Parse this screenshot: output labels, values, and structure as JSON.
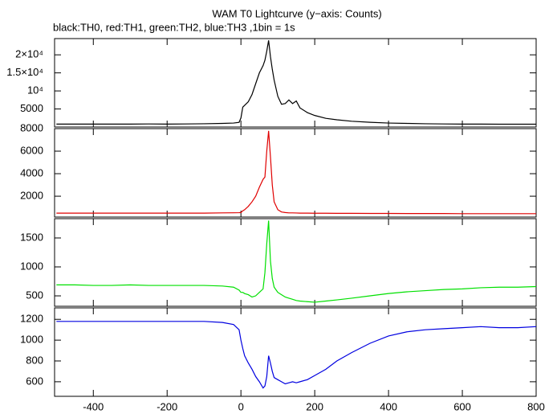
{
  "chart_data": [
    {
      "type": "line",
      "title": "WAM T0 Lightcurve (y−axis: Counts)",
      "subtitle": "black:TH0, red:TH1, green:TH2, blue:TH3 ,1bin = 1s",
      "x": [
        -500,
        -450,
        -400,
        -350,
        -300,
        -250,
        -200,
        -150,
        -100,
        -50,
        -20,
        -5,
        0,
        5,
        10,
        20,
        30,
        40,
        50,
        60,
        65,
        70,
        75,
        80,
        85,
        90,
        100,
        110,
        120,
        130,
        140,
        150,
        160,
        180,
        200,
        230,
        260,
        300,
        350,
        400,
        450,
        500,
        550,
        600,
        650,
        700,
        750,
        800
      ],
      "series": [
        {
          "color": "#000000",
          "values": [
            800,
            800,
            800,
            800,
            800,
            850,
            800,
            850,
            900,
            1000,
            1100,
            1300,
            2500,
            5500,
            6000,
            7000,
            9000,
            12000,
            15000,
            17000,
            18500,
            21000,
            24000,
            19500,
            16000,
            13000,
            8500,
            6300,
            6500,
            7500,
            6500,
            7200,
            5300,
            4000,
            3200,
            2400,
            2000,
            1600,
            1300,
            1100,
            1000,
            900,
            850,
            800,
            800,
            780,
            780,
            780
          ]
        }
      ],
      "xlim": [
        -505,
        800
      ],
      "xticks": [
        -400,
        -200,
        0,
        200,
        400,
        600,
        800
      ],
      "ylim": [
        0,
        24500
      ],
      "yticks": [
        {
          "value": 20000,
          "label": "2×10⁴"
        },
        {
          "value": 15000,
          "label": "1.5×10⁴"
        },
        {
          "value": 10000,
          "label": "10⁴"
        },
        5000
      ]
    },
    {
      "type": "line",
      "x": [
        -500,
        -450,
        -400,
        -350,
        -300,
        -250,
        -200,
        -150,
        -100,
        -50,
        -20,
        -5,
        0,
        5,
        10,
        20,
        30,
        40,
        50,
        60,
        65,
        70,
        75,
        80,
        85,
        90,
        100,
        110,
        120,
        130,
        140,
        150,
        160,
        180,
        200,
        230,
        260,
        300,
        350,
        400,
        450,
        500,
        550,
        600,
        650,
        700,
        750,
        800
      ],
      "series": [
        {
          "color": "#e00000",
          "values": [
            500,
            500,
            500,
            500,
            500,
            500,
            500,
            500,
            500,
            520,
            530,
            540,
            550,
            700,
            800,
            1100,
            1500,
            2000,
            2800,
            3500,
            3700,
            6000,
            7800,
            5500,
            3000,
            1500,
            800,
            600,
            550,
            520,
            520,
            510,
            500,
            500,
            490,
            490,
            480,
            480,
            470,
            470,
            460,
            460,
            460,
            450,
            450,
            450,
            450,
            450
          ]
        }
      ],
      "xlim": [
        -505,
        800
      ],
      "xticks": [
        -400,
        -200,
        0,
        200,
        400,
        600,
        800
      ],
      "ylim": [
        150,
        8000
      ],
      "yticks": [
        8000,
        6000,
        4000,
        2000
      ]
    },
    {
      "type": "line",
      "x": [
        -500,
        -450,
        -400,
        -350,
        -300,
        -250,
        -200,
        -150,
        -100,
        -50,
        -20,
        -5,
        0,
        5,
        10,
        20,
        30,
        40,
        50,
        60,
        65,
        70,
        75,
        80,
        85,
        90,
        100,
        110,
        120,
        130,
        140,
        150,
        160,
        180,
        200,
        230,
        260,
        300,
        350,
        400,
        450,
        500,
        550,
        600,
        650,
        700,
        750,
        800
      ],
      "series": [
        {
          "color": "#00e000",
          "values": [
            690,
            690,
            680,
            680,
            690,
            680,
            680,
            680,
            680,
            670,
            650,
            600,
            560,
            560,
            540,
            520,
            480,
            500,
            560,
            620,
            900,
            1400,
            1800,
            1100,
            800,
            650,
            560,
            520,
            480,
            460,
            440,
            420,
            410,
            400,
            390,
            410,
            430,
            460,
            500,
            540,
            570,
            590,
            610,
            620,
            640,
            650,
            650,
            660
          ]
        }
      ],
      "xlim": [
        -505,
        800
      ],
      "xticks": [
        -400,
        -200,
        0,
        200,
        400,
        600,
        800
      ],
      "ylim": [
        320,
        1833
      ],
      "yticks": [
        1500,
        1000,
        500
      ]
    },
    {
      "type": "line",
      "x": [
        -500,
        -450,
        -400,
        -350,
        -300,
        -250,
        -200,
        -150,
        -100,
        -50,
        -20,
        -5,
        0,
        5,
        10,
        20,
        30,
        40,
        50,
        60,
        65,
        70,
        75,
        80,
        85,
        90,
        100,
        110,
        120,
        130,
        140,
        150,
        160,
        180,
        200,
        230,
        260,
        300,
        350,
        400,
        450,
        500,
        550,
        600,
        650,
        700,
        750,
        800
      ],
      "series": [
        {
          "color": "#0000e0",
          "values": [
            1180,
            1180,
            1180,
            1180,
            1180,
            1180,
            1180,
            1180,
            1180,
            1170,
            1150,
            1100,
            1000,
            920,
            850,
            780,
            720,
            650,
            600,
            540,
            560,
            650,
            850,
            780,
            700,
            640,
            620,
            600,
            580,
            590,
            600,
            590,
            600,
            620,
            660,
            720,
            800,
            880,
            970,
            1040,
            1080,
            1100,
            1110,
            1120,
            1130,
            1120,
            1120,
            1130
          ]
        }
      ],
      "xlim": [
        -505,
        800
      ],
      "xticks": [
        -400,
        -200,
        0,
        200,
        400,
        600,
        800
      ],
      "ylim": [
        460,
        1310
      ],
      "yticks": [
        1200,
        1000,
        800,
        600
      ]
    }
  ]
}
